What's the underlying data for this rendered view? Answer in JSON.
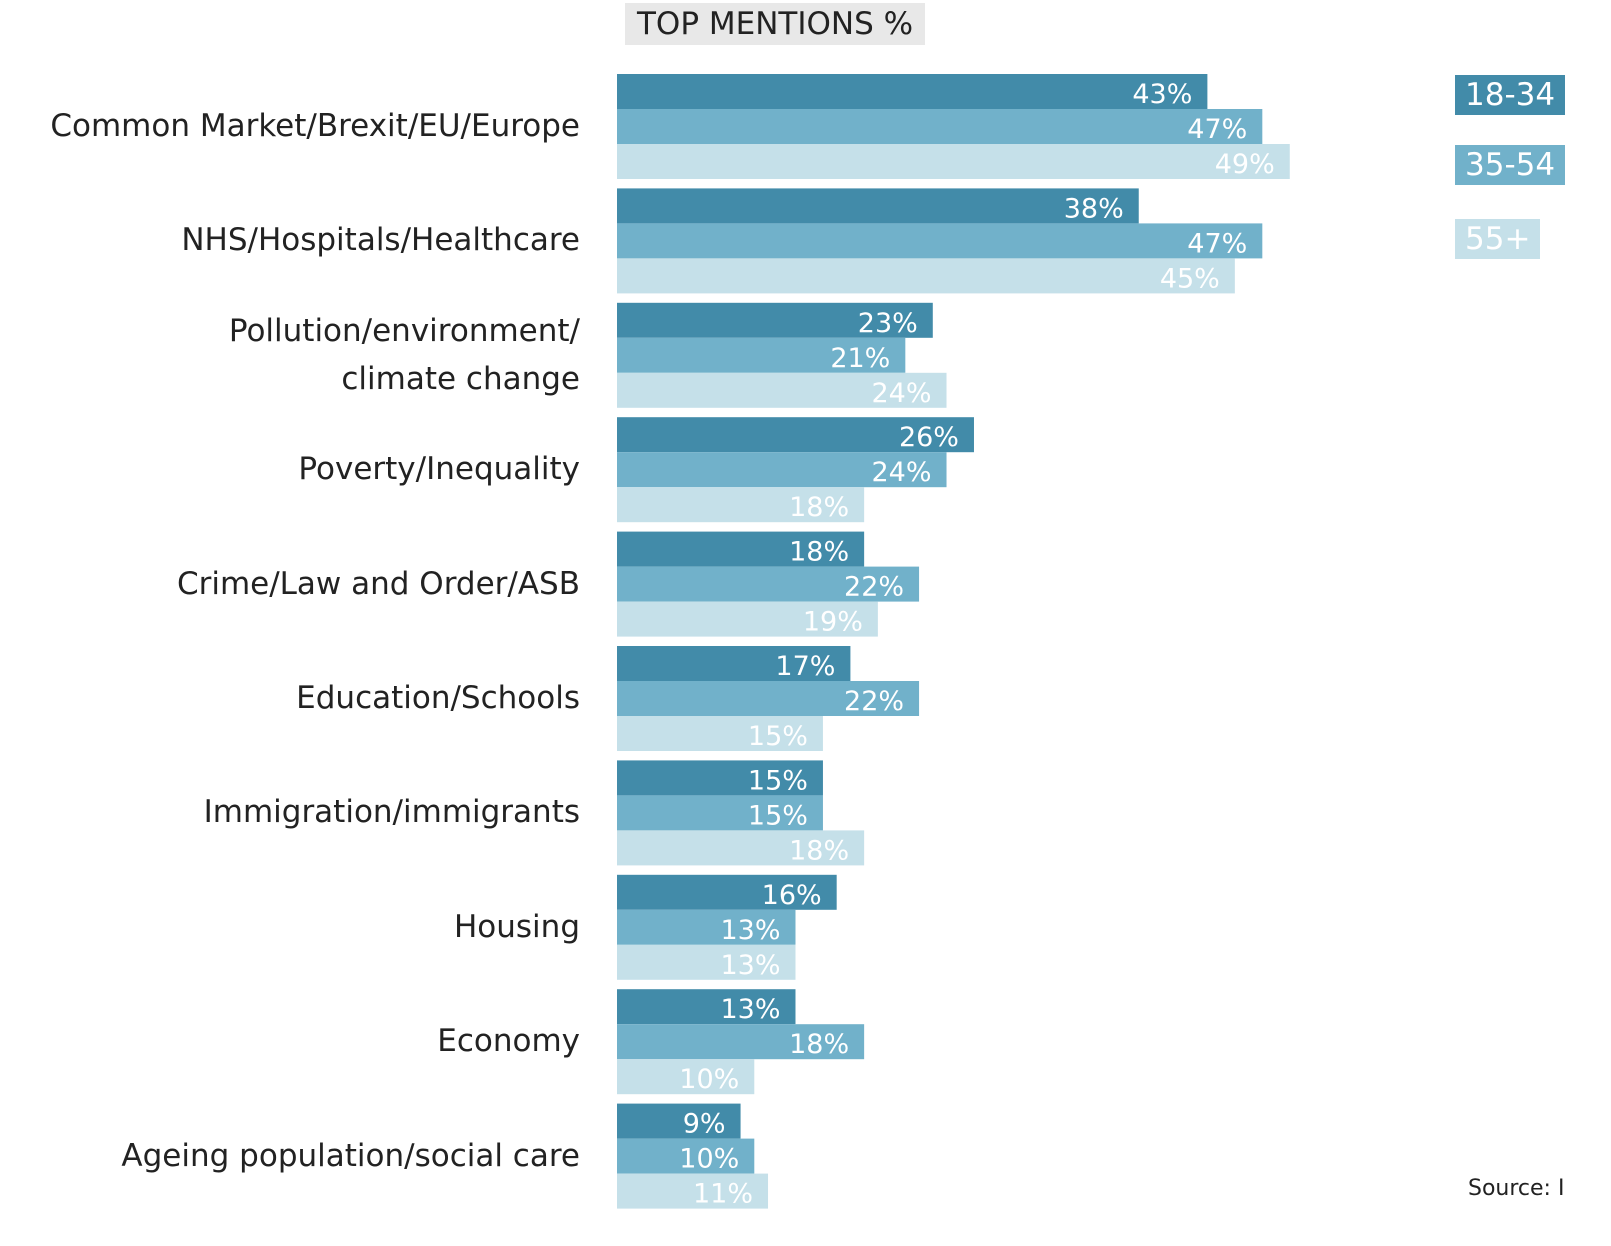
{
  "chart_data": {
    "type": "bar",
    "orientation": "horizontal",
    "title": "TOP MENTIONS %",
    "categories": [
      "Common Market/Brexit/EU/Europe",
      "NHS/Hospitals/Healthcare",
      "Pollution/environment/\nclimate change",
      "Poverty/Inequality",
      "Crime/Law and Order/ASB",
      "Education/Schools",
      "Immigration/immigrants",
      "Housing",
      "Economy",
      "Ageing population/social care"
    ],
    "series": [
      {
        "name": "18-34",
        "color": "#428ba9",
        "values": [
          43,
          38,
          23,
          26,
          18,
          17,
          15,
          16,
          13,
          9
        ],
        "value_labels": [
          "43%",
          "38%",
          "23%",
          "26%",
          "18%",
          "17%",
          "15%",
          "16%",
          "13%",
          "9%"
        ]
      },
      {
        "name": "35-54",
        "color": "#71b1ca",
        "values": [
          47,
          47,
          21,
          24,
          22,
          22,
          15,
          13,
          18,
          10
        ],
        "value_labels": [
          "47%",
          "47%",
          "21%",
          "24%",
          "22%",
          "22%",
          "15%",
          "13%",
          "18%",
          "10%"
        ]
      },
      {
        "name": "55+",
        "color": "#c5e0e9",
        "values": [
          49,
          45,
          24,
          18,
          19,
          15,
          18,
          13,
          10,
          11
        ],
        "value_labels": [
          "49%",
          "45%",
          "24%",
          "18%",
          "19%",
          "15%",
          "18%",
          "13%",
          "10%",
          "11%"
        ]
      }
    ],
    "legend": "top-right",
    "source": "Source: I"
  }
}
